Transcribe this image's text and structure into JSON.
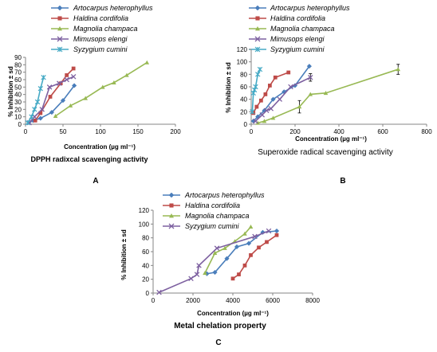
{
  "panels": [
    {
      "letter": "A",
      "chart_data": {
        "type": "line",
        "title": "DPPH radixcal scavenging activity",
        "xlabel": "Concentration (µg ml⁻¹)",
        "ylabel": "% Inhibition ± sd",
        "xlim": [
          0,
          200
        ],
        "ylim": [
          0,
          90
        ],
        "xticks": [
          0,
          50,
          100,
          150,
          200
        ],
        "yticks": [
          0,
          10,
          20,
          30,
          40,
          50,
          60,
          70,
          80,
          90
        ],
        "legend_position": "top",
        "series": [
          {
            "name": "Artocarpus heterophyllus",
            "color": "#4a7ebb",
            "marker": "diamond",
            "x": [
              5,
              10,
              20,
              35,
              50,
              65
            ],
            "y": [
              3,
              5,
              8,
              16,
              32,
              52
            ]
          },
          {
            "name": "Haldina cordifolia",
            "color": "#be4b48",
            "marker": "square",
            "x": [
              13,
              20,
              33,
              47,
              55,
              64
            ],
            "y": [
              5,
              15,
              37,
              55,
              66,
              75
            ]
          },
          {
            "name": "Magnolia champaca",
            "color": "#98b954",
            "marker": "triangle",
            "x": [
              40,
              60,
              80,
              103,
              118,
              135,
              162
            ],
            "y": [
              11,
              25,
              35,
              50,
              56,
              66,
              83
            ]
          },
          {
            "name": "Mimusops elengi",
            "color": "#7d60a0",
            "marker": "x",
            "x": [
              5,
              12,
              22,
              32,
              45,
              55,
              64
            ],
            "y": [
              2,
              10,
              20,
              50,
              55,
              60,
              64
            ]
          },
          {
            "name": "Syzygium cumini",
            "color": "#46aac5",
            "marker": "star",
            "x": [
              3,
              8,
              12,
              16,
              20,
              24
            ],
            "y": [
              2,
              10,
              20,
              30,
              48,
              63
            ]
          }
        ]
      }
    },
    {
      "letter": "B",
      "chart_data": {
        "type": "line",
        "title": "Superoxide radical scavenging activity",
        "xlabel": "Concentration (µg ml⁻¹)",
        "ylabel": "% Inhibition ± sd",
        "xlim": [
          0,
          800
        ],
        "ylim": [
          0,
          120
        ],
        "xticks": [
          0,
          200,
          400,
          600,
          800
        ],
        "yticks": [
          0,
          20,
          40,
          60,
          80,
          100,
          120
        ],
        "legend_position": "top",
        "series": [
          {
            "name": "Artocarpus heterophyllus",
            "color": "#4a7ebb",
            "marker": "diamond",
            "x": [
              10,
              30,
              60,
              100,
              150,
              200,
              265
            ],
            "y": [
              5,
              12,
              22,
              40,
              52,
              62,
              93
            ]
          },
          {
            "name": "Haldina cordifolia",
            "color": "#be4b48",
            "marker": "square",
            "x": [
              10,
              25,
              45,
              65,
              85,
              110,
              170
            ],
            "y": [
              18,
              28,
              38,
              48,
              62,
              75,
              83
            ]
          },
          {
            "name": "Magnolia champaca",
            "color": "#98b954",
            "marker": "triangle",
            "x": [
              30,
              60,
              100,
              220,
              270,
              340,
              670
            ],
            "y": [
              2,
              5,
              10,
              28,
              48,
              50,
              88
            ],
            "error": [
              0,
              0,
              0,
              10,
              0,
              0,
              8
            ]
          },
          {
            "name": "Mimusops elengi",
            "color": "#7d60a0",
            "marker": "x",
            "x": [
              20,
              50,
              70,
              90,
              130,
              180,
              270
            ],
            "y": [
              5,
              15,
              22,
              25,
              40,
              60,
              75
            ],
            "error": [
              0,
              0,
              0,
              0,
              0,
              0,
              6
            ]
          },
          {
            "name": "Syzygium cumini",
            "color": "#46aac5",
            "marker": "star",
            "x": [
              5,
              10,
              15,
              20,
              30,
              40
            ],
            "y": [
              20,
              50,
              55,
              60,
              80,
              88
            ]
          }
        ]
      }
    },
    {
      "letter": "C",
      "chart_data": {
        "type": "line",
        "title": "Metal chelation property",
        "xlabel": "Concentration (µg ml⁻¹)",
        "ylabel": "% Inhibition ± sd",
        "xlim": [
          0,
          8000
        ],
        "ylim": [
          0,
          120
        ],
        "xticks": [
          0,
          2000,
          4000,
          6000,
          8000
        ],
        "yticks": [
          0,
          20,
          40,
          60,
          80,
          100,
          120
        ],
        "legend_position": "top",
        "series": [
          {
            "name": "Artocarpus heterophyllus",
            "color": "#4a7ebb",
            "marker": "diamond",
            "x": [
              2700,
              3100,
              3700,
              4200,
              4800,
              5500,
              6200
            ],
            "y": [
              28,
              30,
              50,
              67,
              72,
              88,
              90
            ]
          },
          {
            "name": "Haldina cordifolia",
            "color": "#be4b48",
            "marker": "square",
            "x": [
              4000,
              4300,
              4600,
              4900,
              5300,
              5700,
              6200
            ],
            "y": [
              21,
              27,
              40,
              55,
              66,
              74,
              84
            ]
          },
          {
            "name": "Magnolia champaca",
            "color": "#98b954",
            "marker": "triangle",
            "x": [
              2600,
              3100,
              3600,
              4100,
              4600,
              4900
            ],
            "y": [
              29,
              58,
              65,
              75,
              86,
              96
            ]
          },
          {
            "name": "Syzygium cumini",
            "color": "#7d60a0",
            "marker": "x",
            "x": [
              300,
              1900,
              2200,
              2300,
              3200,
              5100,
              5800
            ],
            "y": [
              1,
              21,
              27,
              40,
              65,
              82,
              90
            ]
          }
        ]
      }
    }
  ]
}
